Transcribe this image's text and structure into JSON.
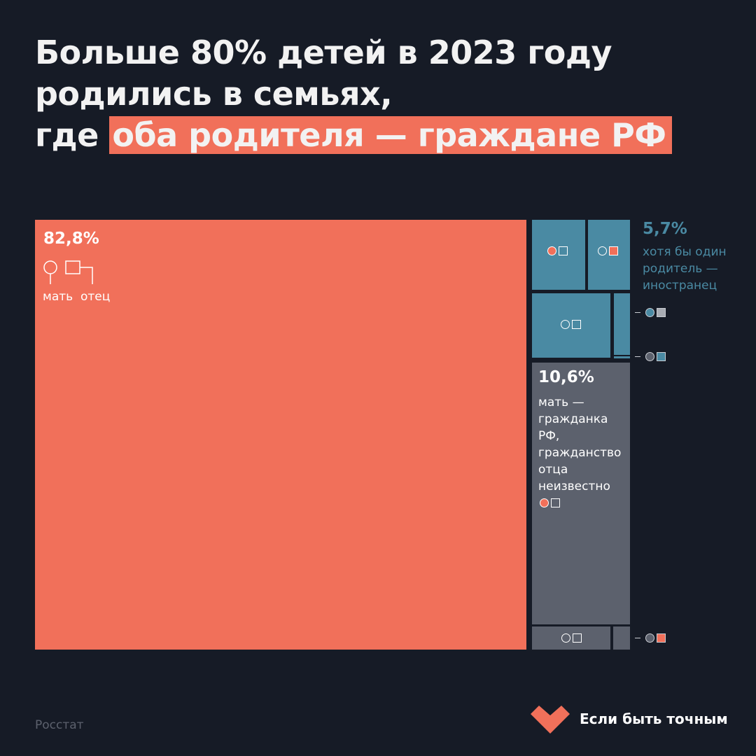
{
  "title": {
    "line1": "Больше 80% детей в 2023 году",
    "line2": "родились в семьях,",
    "line3_plain": "где ",
    "line3_highlight": "оба родителя — граждане РФ"
  },
  "colors": {
    "background": "#161b26",
    "both_citizens": "#f1705a",
    "foreign_parent": "#4a8aa3",
    "father_unknown": "#5c616d"
  },
  "legend": {
    "mother": "мать",
    "father": "отец",
    "mother_icon": "circle-icon",
    "father_icon": "square-icon"
  },
  "chart_data": {
    "type": "treemap",
    "title": "Больше 80% детей в 2023 году родились в семьях, где оба родителя — граждане РФ",
    "groups": [
      {
        "name": "оба родителя — граждане РФ",
        "value_label": "82,8%",
        "value": 82.8,
        "color": "#f1705a"
      },
      {
        "name": "хотя бы один родитель — иностранец",
        "value_label": "5,7%",
        "value": 5.7,
        "color": "#4a8aa3"
      },
      {
        "name": "мать — гражданка РФ, гражданство отца неизвестно",
        "value_label": "10,6%",
        "value": 10.6,
        "color": "#5c616d"
      }
    ],
    "labels": {
      "big_pct": "82,8%",
      "foreign_pct": "5,7%",
      "foreign_text": "хотя бы один родитель — иностранец",
      "unknown_pct": "10,6%",
      "unknown_text": "мать — гражданка РФ, гражданство отца неизвестно"
    }
  },
  "source": "Росстат",
  "brand": "Если быть точным"
}
